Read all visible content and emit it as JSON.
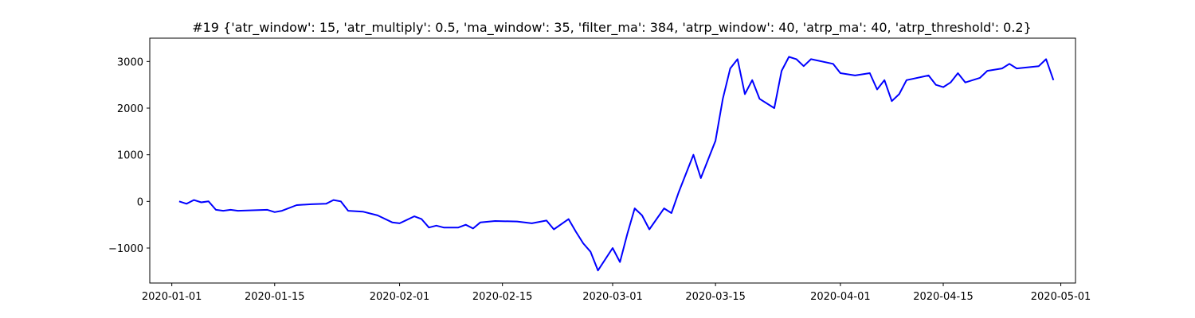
{
  "chart_data": {
    "type": "line",
    "title": "#19 {'atr_window': 15, 'atr_multiply': 0.5, 'ma_window': 35, 'filter_ma': 384, 'atrp_window': 40, 'atrp_ma': 40, 'atrp_threshold': 0.2}",
    "xlabel": "",
    "ylabel": "",
    "x_type": "date",
    "xlim": [
      "2019-12-29",
      "2020-05-03"
    ],
    "ylim": [
      -1750,
      3500
    ],
    "grid": false,
    "legend": "none",
    "line_color": "#0000ff",
    "x_ticks": [
      "2020-01-01",
      "2020-01-15",
      "2020-02-01",
      "2020-02-15",
      "2020-03-01",
      "2020-03-15",
      "2020-04-01",
      "2020-04-15",
      "2020-05-01"
    ],
    "x_tick_labels": [
      "2020-01-01",
      "2020-01-15",
      "2020-02-01",
      "2020-02-15",
      "2020-03-01",
      "2020-03-15",
      "2020-04-01",
      "2020-04-15",
      "2020-05-01"
    ],
    "y_ticks": [
      -1000,
      0,
      1000,
      2000,
      3000
    ],
    "y_tick_labels": [
      "−1000",
      "0",
      "1000",
      "2000",
      "3000"
    ],
    "series": [
      {
        "x": [
          "2020-01-02",
          "2020-01-03",
          "2020-01-04",
          "2020-01-05",
          "2020-01-06",
          "2020-01-07",
          "2020-01-08",
          "2020-01-09",
          "2020-01-10",
          "2020-01-12",
          "2020-01-14",
          "2020-01-15",
          "2020-01-16",
          "2020-01-18",
          "2020-01-20",
          "2020-01-22",
          "2020-01-23",
          "2020-01-24",
          "2020-01-25",
          "2020-01-27",
          "2020-01-29",
          "2020-01-31",
          "2020-02-01",
          "2020-02-03",
          "2020-02-04",
          "2020-02-05",
          "2020-02-06",
          "2020-02-07",
          "2020-02-09",
          "2020-02-10",
          "2020-02-11",
          "2020-02-12",
          "2020-02-14",
          "2020-02-17",
          "2020-02-19",
          "2020-02-21",
          "2020-02-22",
          "2020-02-24",
          "2020-02-25",
          "2020-02-26",
          "2020-02-27",
          "2020-02-28",
          "2020-03-01",
          "2020-03-02",
          "2020-03-03",
          "2020-03-04",
          "2020-03-05",
          "2020-03-06",
          "2020-03-08",
          "2020-03-09",
          "2020-03-10",
          "2020-03-11",
          "2020-03-12",
          "2020-03-13",
          "2020-03-15",
          "2020-03-16",
          "2020-03-17",
          "2020-03-18",
          "2020-03-19",
          "2020-03-20",
          "2020-03-21",
          "2020-03-23",
          "2020-03-24",
          "2020-03-25",
          "2020-03-26",
          "2020-03-27",
          "2020-03-28",
          "2020-03-31",
          "2020-04-01",
          "2020-04-03",
          "2020-04-05",
          "2020-04-06",
          "2020-04-07",
          "2020-04-08",
          "2020-04-09",
          "2020-04-10",
          "2020-04-13",
          "2020-04-14",
          "2020-04-15",
          "2020-04-16",
          "2020-04-17",
          "2020-04-18",
          "2020-04-20",
          "2020-04-21",
          "2020-04-23",
          "2020-04-24",
          "2020-04-25",
          "2020-04-28",
          "2020-04-29",
          "2020-04-30"
        ],
        "y": [
          0,
          -50,
          30,
          -20,
          0,
          -180,
          -200,
          -180,
          -200,
          -190,
          -180,
          -230,
          -200,
          -80,
          -60,
          -50,
          30,
          0,
          -200,
          -220,
          -300,
          -450,
          -470,
          -320,
          -380,
          -560,
          -520,
          -560,
          -560,
          -500,
          -580,
          -450,
          -420,
          -430,
          -470,
          -410,
          -600,
          -380,
          -650,
          -900,
          -1080,
          -1480,
          -1000,
          -1300,
          -700,
          -150,
          -300,
          -600,
          -150,
          -250,
          200,
          600,
          1000,
          500,
          1300,
          2200,
          2850,
          3050,
          2300,
          2600,
          2200,
          2000,
          2800,
          3100,
          3050,
          2900,
          3050,
          2950,
          2750,
          2700,
          2750,
          2400,
          2600,
          2150,
          2300,
          2600,
          2700,
          2500,
          2450,
          2550,
          2750,
          2550,
          2650,
          2800,
          2850,
          2950,
          2850,
          2900,
          3050,
          2600
        ]
      }
    ]
  }
}
